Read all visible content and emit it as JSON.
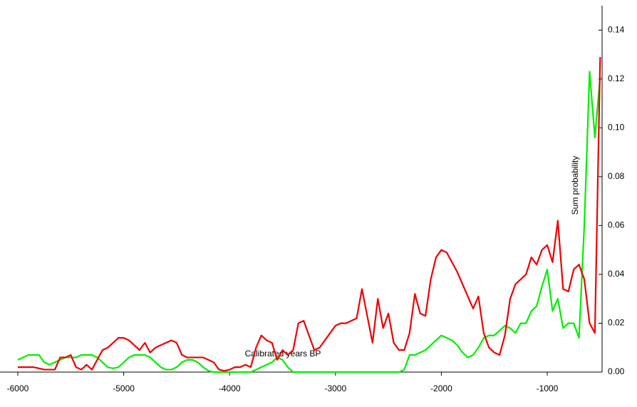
{
  "chart_data": {
    "type": "line",
    "x_label": "Calibrated years BP",
    "y_label": "Sum probability",
    "x": [
      -6000,
      -5950,
      -5900,
      -5850,
      -5800,
      -5750,
      -5700,
      -5650,
      -5600,
      -5550,
      -5500,
      -5450,
      -5400,
      -5350,
      -5300,
      -5250,
      -5200,
      -5150,
      -5100,
      -5050,
      -5000,
      -4950,
      -4900,
      -4850,
      -4800,
      -4750,
      -4700,
      -4650,
      -4600,
      -4550,
      -4500,
      -4450,
      -4400,
      -4350,
      -4300,
      -4250,
      -4200,
      -4150,
      -4100,
      -4050,
      -4000,
      -3950,
      -3900,
      -3850,
      -3800,
      -3750,
      -3700,
      -3650,
      -3600,
      -3550,
      -3500,
      -3450,
      -3400,
      -3350,
      -3300,
      -3250,
      -3200,
      -3150,
      -3100,
      -3050,
      -3000,
      -2950,
      -2900,
      -2850,
      -2800,
      -2750,
      -2700,
      -2650,
      -2600,
      -2550,
      -2500,
      -2450,
      -2400,
      -2350,
      -2300,
      -2250,
      -2200,
      -2150,
      -2100,
      -2050,
      -2000,
      -1950,
      -1900,
      -1850,
      -1800,
      -1750,
      -1700,
      -1650,
      -1600,
      -1550,
      -1500,
      -1450,
      -1400,
      -1350,
      -1300,
      -1250,
      -1200,
      -1150,
      -1100,
      -1050,
      -1000,
      -950,
      -900,
      -850,
      -800,
      -750,
      -700,
      -650,
      -600,
      -550,
      -500
    ],
    "series": [
      {
        "color": "#00ee00",
        "values": [
          0.005,
          0.006,
          0.007,
          0.007,
          0.007,
          0.004,
          0.003,
          0.004,
          0.005,
          0.006,
          0.006,
          0.006,
          0.007,
          0.007,
          0.007,
          0.006,
          0.004,
          0.002,
          0.0015,
          0.002,
          0.004,
          0.006,
          0.007,
          0.007,
          0.007,
          0.006,
          0.004,
          0.002,
          0.001,
          0.001,
          0.002,
          0.004,
          0.005,
          0.005,
          0.004,
          0.002,
          0.0005,
          0,
          0,
          0,
          0,
          0,
          0,
          0,
          0,
          0.001,
          0.002,
          0.003,
          0.004,
          0.006,
          0.005,
          0.002,
          0,
          0,
          0,
          0,
          0,
          0,
          0,
          0,
          0,
          0,
          0,
          0,
          0,
          0,
          0,
          0,
          0,
          0,
          0,
          0,
          0,
          0.001,
          0.007,
          0.007,
          0.008,
          0.009,
          0.011,
          0.013,
          0.015,
          0.014,
          0.013,
          0.011,
          0.008,
          0.006,
          0.007,
          0.01,
          0.014,
          0.015,
          0.015,
          0.017,
          0.019,
          0.018,
          0.016,
          0.02,
          0.02,
          0.025,
          0.027,
          0.035,
          0.042,
          0.025,
          0.03,
          0.018,
          0.02,
          0.02,
          0.014,
          0.06,
          0.123,
          0.096,
          0.121
        ]
      },
      {
        "color": "#ee0000",
        "values": [
          0.002,
          0.002,
          0.002,
          0.002,
          0.0015,
          0.001,
          0.001,
          0.001,
          0.006,
          0.006,
          0.007,
          0.002,
          0.001,
          0.003,
          0.001,
          0.005,
          0.009,
          0.01,
          0.012,
          0.014,
          0.014,
          0.013,
          0.011,
          0.009,
          0.012,
          0.008,
          0.01,
          0.011,
          0.012,
          0.013,
          0.012,
          0.007,
          0.006,
          0.006,
          0.006,
          0.006,
          0.005,
          0.004,
          0.001,
          0.0005,
          0.001,
          0.002,
          0.002,
          0.003,
          0.002,
          0.01,
          0.015,
          0.013,
          0.012,
          0.005,
          0.009,
          0.007,
          0.009,
          0.02,
          0.021,
          0.015,
          0.009,
          0.01,
          0.013,
          0.016,
          0.019,
          0.02,
          0.02,
          0.021,
          0.022,
          0.034,
          0.023,
          0.012,
          0.03,
          0.018,
          0.024,
          0.012,
          0.009,
          0.009,
          0.016,
          0.032,
          0.024,
          0.023,
          0.038,
          0.047,
          0.05,
          0.049,
          0.045,
          0.041,
          0.036,
          0.031,
          0.026,
          0.031,
          0.016,
          0.01,
          0.008,
          0.007,
          0.015,
          0.03,
          0.036,
          0.038,
          0.04,
          0.047,
          0.044,
          0.05,
          0.052,
          0.045,
          0.062,
          0.034,
          0.033,
          0.042,
          0.044,
          0.038,
          0.02,
          0.016,
          0.129
        ]
      }
    ],
    "xlim": [
      -6000,
      -482
    ],
    "xticks": [
      -6000,
      -5000,
      -4000,
      -3000,
      -2000,
      -1000
    ],
    "ylim": [
      0,
      0.15
    ],
    "yticks": [
      {
        "value": 0,
        "label": "0.00"
      },
      {
        "value": 0.02,
        "label": "0.02"
      },
      {
        "value": 0.04,
        "label": "0.04"
      },
      {
        "value": 0.06,
        "label": "0.06"
      },
      {
        "value": 0.08,
        "label": "0.08"
      },
      {
        "value": 0.1,
        "label": "0.10"
      },
      {
        "value": 0.12,
        "label": "0.12"
      },
      {
        "value": 0.14,
        "label": "0.14"
      }
    ],
    "y_axis_side": "right"
  }
}
